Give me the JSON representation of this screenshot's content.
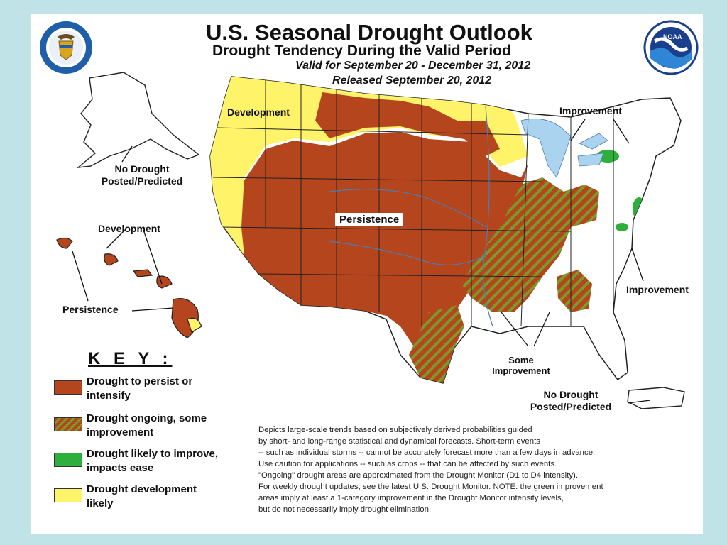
{
  "header": {
    "title": "U.S. Seasonal Drought Outlook",
    "subtitle": "Drought Tendency During the Valid Period",
    "valid": "Valid for September 20 - December 31, 2012",
    "released": "Released September 20, 2012"
  },
  "logos": {
    "left_seal": "dept-of-commerce-seal-icon",
    "right_logo": "noaa-logo-icon",
    "noaa_text": "NOAA"
  },
  "map_labels": {
    "development_west": "Development",
    "persistence_center": "Persistence",
    "improvement_northeast": "Improvement",
    "improvement_east": "Improvement",
    "some_improvement_1": "Some",
    "some_improvement_2": "Improvement",
    "alaska_no_drought_1": "No Drought",
    "alaska_no_drought_2": "Posted/Predicted",
    "hawaii_development": "Development",
    "hawaii_persistence": "Persistence",
    "pr_no_drought_1": "No Drought",
    "pr_no_drought_2": "Posted/Predicted"
  },
  "key": {
    "title": "K E Y :",
    "items": [
      {
        "label_1": "Drought to persist or",
        "label_2": "intensify",
        "color": "#b5451d",
        "pattern": "solid"
      },
      {
        "label_1": "Drought ongoing, some",
        "label_2": "improvement",
        "color": "#b5451d",
        "pattern": "hatch-green"
      },
      {
        "label_1": "Drought likely to improve,",
        "label_2": "impacts ease",
        "color": "#2eae3a",
        "pattern": "solid"
      },
      {
        "label_1": "Drought development",
        "label_2": "likely",
        "color": "#fff469",
        "pattern": "solid"
      }
    ]
  },
  "disclaimer": [
    "Depicts large-scale trends based on subjectively derived probabilities guided",
    "by short- and long-range statistical and dynamical forecasts. Short-term events",
    "-- such as individual storms -- cannot be accurately forecast more than a few days in advance.",
    "Use caution for applications -- such as crops -- that can be affected by such events.",
    "\"Ongoing\" drought areas are approximated from the Drought Monitor (D1 to D4 intensity).",
    "For weekly drought updates, see the latest U.S. Drought Monitor. NOTE: the green improvement",
    "areas imply at least a 1-category improvement in the Drought Monitor intensity levels,",
    "but do not necessarily imply drought elimination."
  ],
  "colors": {
    "persist": "#b5451d",
    "hatch_green": "#7a9a2a",
    "improve": "#2eae3a",
    "develop": "#fff469",
    "water": "#a9d3ee",
    "frame": "#bfe3e6"
  }
}
